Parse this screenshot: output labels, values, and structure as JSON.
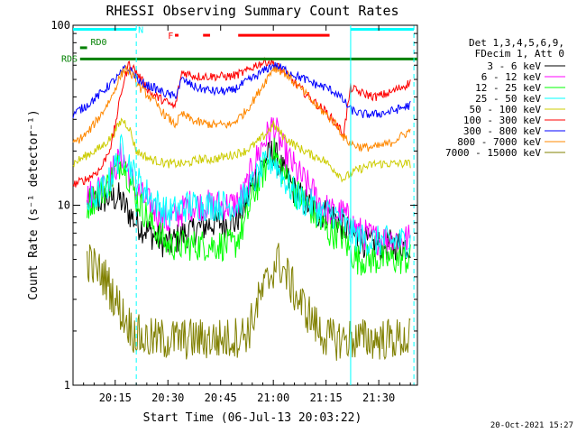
{
  "chart_data": {
    "type": "line",
    "title": "RHESSI Observing Summary Count Rates",
    "xlabel": "Start Time (06-Jul-13 20:03:22)",
    "ylabel": "Count Rate (s⁻¹ detector⁻¹)",
    "ylog": true,
    "ylim": [
      1,
      100
    ],
    "xlim_minutes": [
      0,
      98
    ],
    "x_ticks": [
      {
        "label": "20:15",
        "minute": 12
      },
      {
        "label": "20:30",
        "minute": 27
      },
      {
        "label": "20:45",
        "minute": 42
      },
      {
        "label": "21:00",
        "minute": 57
      },
      {
        "label": "21:15",
        "minute": 72
      },
      {
        "label": "21:30",
        "minute": 87
      }
    ],
    "y_ticks": [
      {
        "label": "100",
        "value": 100
      },
      {
        "label": "10",
        "value": 10
      },
      {
        "label": "1",
        "value": 1
      }
    ],
    "legend_header": [
      "Det 1,3,4,5,6,9,",
      "FDecim 1, Att 0"
    ],
    "timestamp": "20-Oct-2021 15:27",
    "flags": [
      {
        "name": "N",
        "color": "#00ffff",
        "y": 95,
        "segments": [
          [
            0,
            18
          ],
          [
            79,
            97
          ]
        ]
      },
      {
        "name": "RD0",
        "color": "#008000",
        "y": 75,
        "segments": [
          [
            2,
            4
          ]
        ]
      },
      {
        "name": "RDS",
        "color": "#008000",
        "y": 65,
        "segments": [
          [
            2,
            79
          ],
          [
            79,
            98
          ]
        ]
      },
      {
        "name": "F",
        "color": "#ff0000",
        "y": 88,
        "segments": [
          [
            29,
            30
          ],
          [
            37,
            39
          ],
          [
            47,
            73
          ]
        ]
      }
    ],
    "markers": {
      "solid_vlines": [
        {
          "minute": 79,
          "color": "#00ffff"
        }
      ],
      "dashed_vlines": [
        {
          "minute": 18,
          "color": "#00ffff"
        },
        {
          "minute": 97,
          "color": "#00ffff"
        }
      ]
    },
    "series": [
      {
        "name": "3 - 6 keV",
        "color": "#000000",
        "points": [
          [
            4,
            10
          ],
          [
            10,
            11
          ],
          [
            13,
            11
          ],
          [
            18,
            8
          ],
          [
            22,
            7
          ],
          [
            27,
            6
          ],
          [
            32,
            7
          ],
          [
            40,
            8
          ],
          [
            46,
            8
          ],
          [
            49,
            10
          ],
          [
            51,
            13
          ],
          [
            54,
            17
          ],
          [
            57,
            20
          ],
          [
            60,
            15
          ],
          [
            63,
            12
          ],
          [
            67,
            10
          ],
          [
            70,
            9
          ],
          [
            73,
            9
          ],
          [
            76,
            8
          ],
          [
            79,
            7
          ],
          [
            81,
            6.5
          ],
          [
            85,
            6
          ],
          [
            90,
            6
          ],
          [
            96,
            6
          ]
        ]
      },
      {
        "name": "6 - 12 keV",
        "color": "#ff00ff",
        "points": [
          [
            4,
            11
          ],
          [
            10,
            14
          ],
          [
            14,
            19
          ],
          [
            18,
            12
          ],
          [
            22,
            10
          ],
          [
            27,
            8
          ],
          [
            33,
            10
          ],
          [
            40,
            10
          ],
          [
            46,
            10
          ],
          [
            49,
            12
          ],
          [
            51,
            16
          ],
          [
            54,
            22
          ],
          [
            57,
            28
          ],
          [
            60,
            20
          ],
          [
            64,
            15
          ],
          [
            68,
            12
          ],
          [
            71,
            10
          ],
          [
            74,
            9
          ],
          [
            77,
            9
          ],
          [
            79,
            8
          ],
          [
            82,
            7
          ],
          [
            86,
            6.5
          ],
          [
            90,
            6.5
          ],
          [
            96,
            6.5
          ]
        ]
      },
      {
        "name": "12 - 25 keV",
        "color": "#00ff00",
        "points": [
          [
            4,
            10
          ],
          [
            10,
            13
          ],
          [
            14,
            18
          ],
          [
            18,
            11
          ],
          [
            22,
            8
          ],
          [
            27,
            6
          ],
          [
            33,
            6
          ],
          [
            40,
            6
          ],
          [
            46,
            6
          ],
          [
            49,
            8
          ],
          [
            51,
            11
          ],
          [
            54,
            15
          ],
          [
            57,
            20
          ],
          [
            60,
            15
          ],
          [
            63,
            12
          ],
          [
            67,
            10
          ],
          [
            70,
            8
          ],
          [
            73,
            7
          ],
          [
            76,
            7
          ],
          [
            79,
            5.5
          ],
          [
            81,
            5
          ],
          [
            86,
            5
          ],
          [
            90,
            5
          ],
          [
            96,
            5
          ]
        ]
      },
      {
        "name": "25 - 50 keV",
        "color": "#00ffff",
        "points": [
          [
            4,
            10
          ],
          [
            10,
            13
          ],
          [
            14,
            21
          ],
          [
            18,
            14
          ],
          [
            22,
            11
          ],
          [
            27,
            9
          ],
          [
            33,
            10
          ],
          [
            40,
            10
          ],
          [
            46,
            10
          ],
          [
            49,
            11
          ],
          [
            51,
            13
          ],
          [
            54,
            16
          ],
          [
            57,
            18
          ],
          [
            60,
            14
          ],
          [
            64,
            11
          ],
          [
            68,
            10
          ],
          [
            71,
            9
          ],
          [
            74,
            9
          ],
          [
            77,
            8
          ],
          [
            79,
            7
          ],
          [
            82,
            6.5
          ],
          [
            86,
            6.3
          ],
          [
            90,
            6.3
          ],
          [
            96,
            6.3
          ]
        ]
      },
      {
        "name": "50 - 100 keV",
        "color": "#cccc00",
        "points": [
          [
            0,
            17
          ],
          [
            4,
            19
          ],
          [
            8,
            21
          ],
          [
            11,
            24
          ],
          [
            14,
            30
          ],
          [
            16,
            27
          ],
          [
            18,
            20
          ],
          [
            22,
            18
          ],
          [
            27,
            17
          ],
          [
            32,
            17
          ],
          [
            36,
            18
          ],
          [
            40,
            18
          ],
          [
            45,
            19
          ],
          [
            49,
            20
          ],
          [
            52,
            22
          ],
          [
            55,
            25
          ],
          [
            57,
            28
          ],
          [
            60,
            24
          ],
          [
            64,
            21
          ],
          [
            68,
            19
          ],
          [
            71,
            18
          ],
          [
            74,
            16
          ],
          [
            77,
            14
          ],
          [
            79,
            15
          ],
          [
            82,
            16
          ],
          [
            86,
            17
          ],
          [
            90,
            17
          ],
          [
            96,
            17
          ]
        ]
      },
      {
        "name": "100 - 300 keV",
        "color": "#ff0000",
        "points": [
          [
            0,
            13
          ],
          [
            4,
            14
          ],
          [
            8,
            16
          ],
          [
            11,
            22
          ],
          [
            14,
            45
          ],
          [
            16,
            62
          ],
          [
            18,
            55
          ],
          [
            22,
            42
          ],
          [
            26,
            38
          ],
          [
            29,
            35
          ],
          [
            31,
            55
          ],
          [
            35,
            52
          ],
          [
            40,
            52
          ],
          [
            45,
            52
          ],
          [
            49,
            55
          ],
          [
            52,
            60
          ],
          [
            55,
            63
          ],
          [
            57,
            62
          ],
          [
            60,
            55
          ],
          [
            63,
            48
          ],
          [
            66,
            42
          ],
          [
            69,
            37
          ],
          [
            72,
            33
          ],
          [
            75,
            28
          ],
          [
            77,
            25
          ],
          [
            79,
            45
          ],
          [
            82,
            42
          ],
          [
            86,
            40
          ],
          [
            90,
            42
          ],
          [
            96,
            48
          ]
        ]
      },
      {
        "name": "300 - 800 keV",
        "color": "#0000ff",
        "points": [
          [
            0,
            32
          ],
          [
            4,
            36
          ],
          [
            8,
            42
          ],
          [
            11,
            48
          ],
          [
            13,
            52
          ],
          [
            15,
            58
          ],
          [
            17,
            55
          ],
          [
            19,
            48
          ],
          [
            23,
            45
          ],
          [
            26,
            42
          ],
          [
            29,
            40
          ],
          [
            31,
            50
          ],
          [
            35,
            45
          ],
          [
            40,
            43
          ],
          [
            45,
            43
          ],
          [
            49,
            48
          ],
          [
            52,
            52
          ],
          [
            55,
            57
          ],
          [
            57,
            60
          ],
          [
            60,
            57
          ],
          [
            63,
            53
          ],
          [
            66,
            50
          ],
          [
            69,
            47
          ],
          [
            72,
            45
          ],
          [
            75,
            42
          ],
          [
            77,
            38
          ],
          [
            79,
            34
          ],
          [
            82,
            32
          ],
          [
            86,
            32
          ],
          [
            90,
            33
          ],
          [
            96,
            36
          ]
        ]
      },
      {
        "name": "800 - 7000 keV",
        "color": "#ff8800",
        "points": [
          [
            0,
            22
          ],
          [
            4,
            25
          ],
          [
            8,
            32
          ],
          [
            11,
            40
          ],
          [
            13,
            50
          ],
          [
            15,
            58
          ],
          [
            17,
            52
          ],
          [
            19,
            45
          ],
          [
            23,
            38
          ],
          [
            26,
            32
          ],
          [
            29,
            28
          ],
          [
            31,
            32
          ],
          [
            35,
            29
          ],
          [
            40,
            28
          ],
          [
            45,
            28
          ],
          [
            49,
            33
          ],
          [
            52,
            40
          ],
          [
            55,
            50
          ],
          [
            57,
            58
          ],
          [
            60,
            55
          ],
          [
            63,
            48
          ],
          [
            66,
            42
          ],
          [
            69,
            36
          ],
          [
            72,
            32
          ],
          [
            75,
            28
          ],
          [
            77,
            24
          ],
          [
            79,
            22
          ],
          [
            82,
            21
          ],
          [
            86,
            21
          ],
          [
            90,
            22
          ],
          [
            96,
            26
          ]
        ]
      },
      {
        "name": "7000 - 15000 keV",
        "color": "#808000",
        "points": [
          [
            4,
            5
          ],
          [
            6,
            4.5
          ],
          [
            9,
            4
          ],
          [
            12,
            3
          ],
          [
            14,
            2.5
          ],
          [
            17,
            2
          ],
          [
            20,
            1.8
          ],
          [
            24,
            1.8
          ],
          [
            28,
            1.8
          ],
          [
            32,
            1.8
          ],
          [
            36,
            1.8
          ],
          [
            40,
            1.8
          ],
          [
            44,
            1.8
          ],
          [
            48,
            1.9
          ],
          [
            50,
            2
          ],
          [
            53,
            3
          ],
          [
            56,
            4
          ],
          [
            58,
            5
          ],
          [
            61,
            4
          ],
          [
            64,
            3
          ],
          [
            67,
            2.5
          ],
          [
            70,
            2
          ],
          [
            73,
            1.8
          ],
          [
            77,
            1.8
          ],
          [
            80,
            1.8
          ],
          [
            85,
            1.8
          ],
          [
            90,
            1.8
          ],
          [
            96,
            1.8
          ]
        ]
      }
    ]
  }
}
